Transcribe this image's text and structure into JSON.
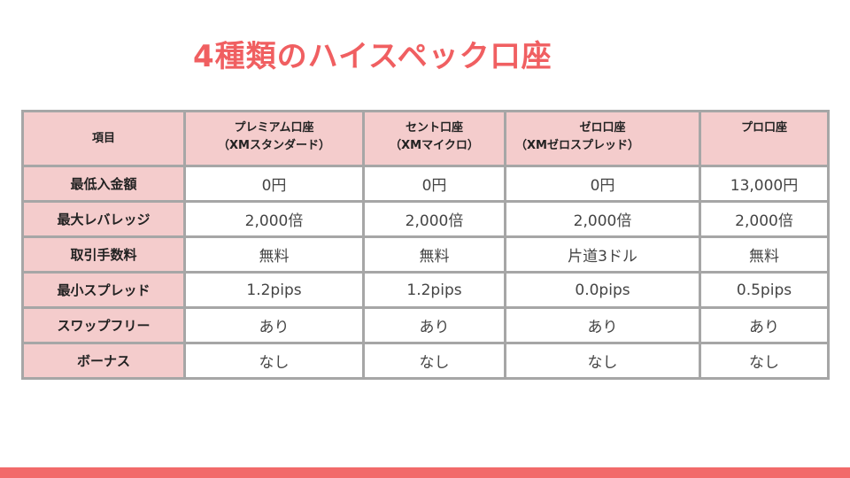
{
  "title": "4種類のハイスペック口座",
  "table": {
    "header": {
      "item": "項目",
      "columns": [
        {
          "line1": "プレミアム口座",
          "line2": "（XMスタンダード）"
        },
        {
          "line1": "セント口座",
          "line2": "（XMマイクロ）"
        },
        {
          "line1": "ゼロ口座",
          "line2": "（XMゼロスプレッド）"
        },
        {
          "line1": "プロ口座",
          "line2": ""
        }
      ]
    },
    "rows": [
      {
        "label": "最低入金額",
        "values": [
          "0円",
          "0円",
          "0円",
          "13,000円"
        ]
      },
      {
        "label": "最大レバレッジ",
        "values": [
          "2,000倍",
          "2,000倍",
          "2,000倍",
          "2,000倍"
        ]
      },
      {
        "label": "取引手数料",
        "values": [
          "無料",
          "無料",
          "片道3ドル",
          "無料"
        ]
      },
      {
        "label": "最小スプレッド",
        "values": [
          "1.2pips",
          "1.2pips",
          "0.0pips",
          "0.5pips"
        ]
      },
      {
        "label": "スワップフリー",
        "values": [
          "あり",
          "あり",
          "あり",
          "あり"
        ]
      },
      {
        "label": "ボーナス",
        "values": [
          "なし",
          "なし",
          "なし",
          "なし"
        ]
      }
    ]
  },
  "colors": {
    "title": "#f05f61",
    "header_bg": "#f4cccc",
    "border": "#a6a6a6",
    "bottom_bar": "#f26a6a"
  }
}
